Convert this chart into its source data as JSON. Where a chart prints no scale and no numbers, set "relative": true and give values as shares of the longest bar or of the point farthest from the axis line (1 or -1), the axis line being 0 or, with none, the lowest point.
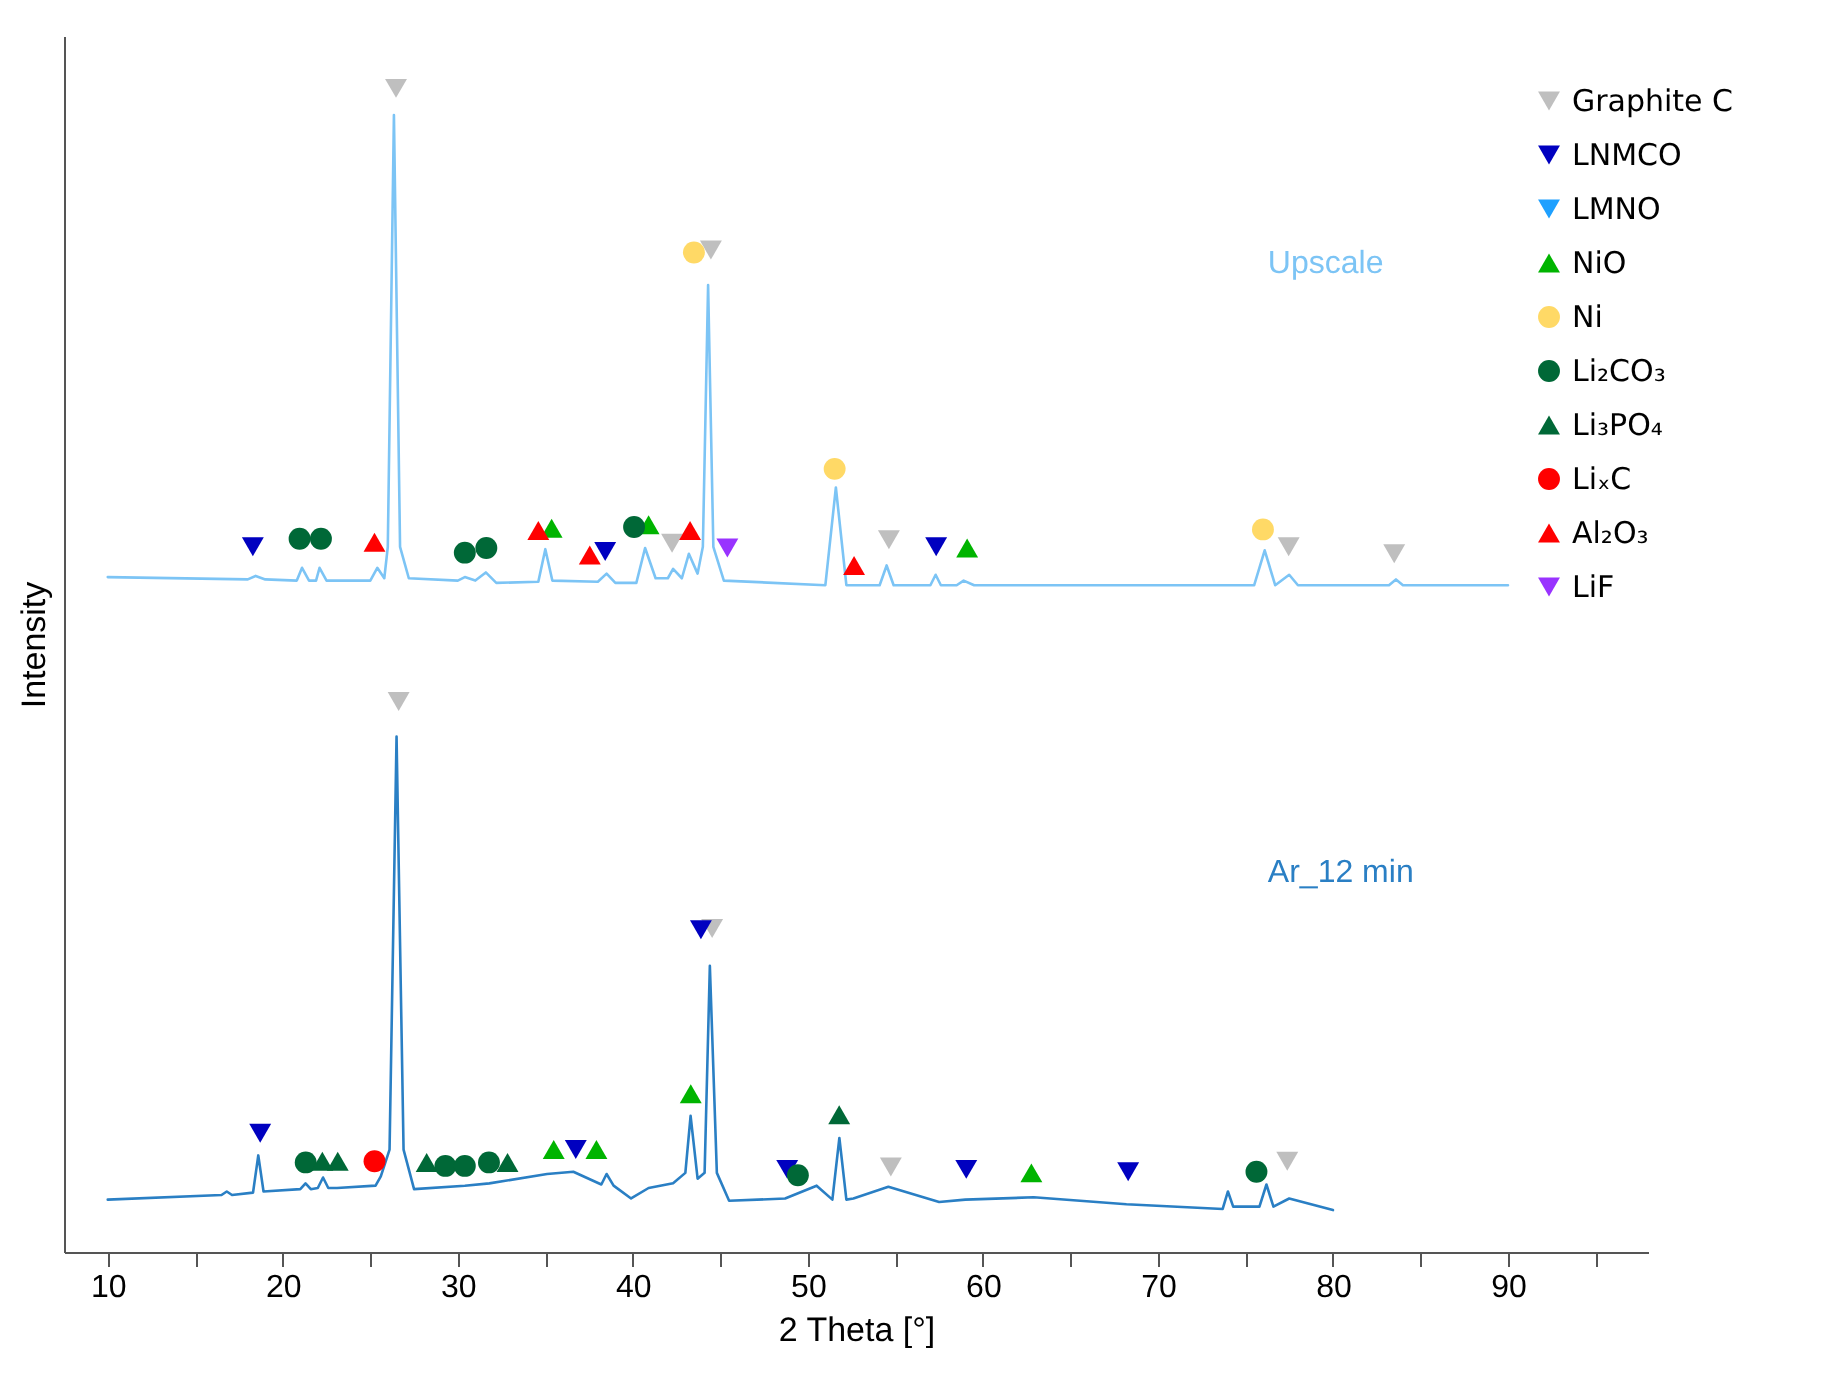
{
  "chart_data": {
    "type": "line",
    "xlabel": "2 Theta [°]",
    "ylabel": "Intensity",
    "relative": true,
    "grid": false,
    "legend": "top right",
    "tick_labels": "x",
    "xlim": [
      7.5,
      98
    ],
    "xticks": [
      10,
      {
        "value": 15,
        "label": null
      },
      20,
      {
        "value": 25,
        "label": null
      },
      30,
      {
        "value": 35,
        "label": null
      },
      40,
      {
        "value": 45,
        "label": null
      },
      50,
      {
        "value": 55,
        "label": null
      },
      60,
      {
        "value": 65,
        "label": null
      },
      70,
      {
        "value": 75,
        "label": null
      },
      80,
      {
        "value": 85,
        "label": null
      },
      90,
      {
        "value": 95,
        "label": null
      }
    ],
    "series": [
      {
        "name": "Upscale",
        "color": "#7cc4f5",
        "x": [
          10,
          18.0,
          18.45,
          19,
          20.8,
          21.1,
          21.5,
          21.9,
          22.1,
          22.5,
          25.0,
          25.4,
          25.8,
          26.0,
          26.35,
          26.7,
          27.2,
          30.0,
          30.4,
          31.0,
          31.6,
          32.2,
          34.6,
          35.0,
          35.4,
          38.0,
          38.5,
          39.0,
          40.2,
          40.7,
          41.3,
          42.0,
          42.3,
          42.8,
          43.2,
          43.7,
          44.0,
          44.3,
          44.6,
          45.2,
          51.0,
          51.6,
          52.2,
          54.1,
          54.5,
          54.9,
          57.0,
          57.3,
          57.6,
          58.5,
          58.9,
          59.5,
          75.5,
          76.1,
          76.7,
          77.5,
          78.0,
          83.2,
          83.6,
          84.0,
          90
        ],
        "values": [
          0.58,
          0.578,
          0.581,
          0.578,
          0.577,
          0.588,
          0.577,
          0.577,
          0.588,
          0.577,
          0.577,
          0.588,
          0.579,
          0.606,
          0.977,
          0.606,
          0.579,
          0.577,
          0.58,
          0.577,
          0.584,
          0.575,
          0.576,
          0.604,
          0.577,
          0.576,
          0.583,
          0.575,
          0.575,
          0.605,
          0.579,
          0.579,
          0.587,
          0.579,
          0.6,
          0.583,
          0.606,
          0.831,
          0.606,
          0.577,
          0.573,
          0.657,
          0.573,
          0.573,
          0.59,
          0.573,
          0.573,
          0.582,
          0.573,
          0.573,
          0.577,
          0.573,
          0.573,
          0.603,
          0.573,
          0.582,
          0.573,
          0.573,
          0.578,
          0.573,
          0.573
        ]
      },
      {
        "name": "Ar_12 min",
        "color": "#2a7fc4",
        "x": [
          10,
          16.5,
          16.8,
          17.1,
          18.3,
          18.6,
          18.9,
          21.0,
          21.3,
          21.6,
          22.0,
          22.3,
          22.6,
          23.1,
          25.3,
          25.6,
          26.1,
          26.5,
          26.9,
          27.5,
          30.4,
          31.8,
          35.1,
          36.6,
          38.2,
          38.5,
          38.9,
          39.9,
          40.9,
          42.3,
          43.0,
          43.3,
          43.7,
          44.1,
          44.4,
          44.8,
          45.5,
          48.7,
          50.5,
          51.4,
          51.8,
          52.2,
          52.6,
          54.6,
          57.5,
          59.0,
          62.9,
          68.2,
          73.7,
          74.0,
          74.3,
          75.8,
          76.2,
          76.6,
          77.5,
          80
        ],
        "values": [
          0.045,
          0.049,
          0.052,
          0.049,
          0.051,
          0.083,
          0.052,
          0.054,
          0.059,
          0.054,
          0.055,
          0.064,
          0.055,
          0.055,
          0.057,
          0.065,
          0.088,
          0.443,
          0.088,
          0.054,
          0.057,
          0.059,
          0.067,
          0.069,
          0.058,
          0.067,
          0.057,
          0.046,
          0.055,
          0.059,
          0.068,
          0.117,
          0.063,
          0.068,
          0.246,
          0.068,
          0.044,
          0.046,
          0.057,
          0.045,
          0.098,
          0.045,
          0.046,
          0.056,
          0.043,
          0.045,
          0.047,
          0.041,
          0.037,
          0.052,
          0.039,
          0.039,
          0.058,
          0.039,
          0.046,
          0.036
        ]
      },
      {
        "name": "Graphite C",
        "type": "scatter",
        "color": "#bfbfbf",
        "marker": "triangle-down",
        "x": [
          26.47,
          44.46,
          42.24,
          54.63,
          77.47,
          83.5,
          26.62,
          44.53,
          54.74,
          77.39
        ],
        "values": [
          1.0,
          0.861,
          0.609,
          0.612,
          0.606,
          0.6,
          0.473,
          0.278,
          0.073,
          0.078
        ]
      },
      {
        "name": "LNMCO",
        "type": "scatter",
        "color": "#0000c0",
        "marker": "triangle-down",
        "x": [
          18.29,
          38.42,
          57.33,
          18.71,
          36.74,
          43.89,
          48.82,
          59.05,
          68.3
        ],
        "values": [
          0.606,
          0.602,
          0.606,
          0.102,
          0.088,
          0.277,
          0.071,
          0.071,
          0.069
        ]
      },
      {
        "name": "LMNO",
        "type": "scatter",
        "color": "#1ea0ff",
        "marker": "triangle-down"
      },
      {
        "name": "NiO",
        "type": "scatter",
        "color": "#00b400",
        "marker": "triangle",
        "x": [
          35.36,
          40.9,
          59.1,
          35.48,
          37.92,
          43.31,
          62.77
        ],
        "values": [
          0.622,
          0.625,
          0.605,
          0.088,
          0.088,
          0.136,
          0.068
        ]
      },
      {
        "name": "Ni",
        "type": "scatter",
        "color": "#ffd966",
        "marker": "circle",
        "x": [
          43.49,
          51.53,
          76.0
        ],
        "values": [
          0.859,
          0.673,
          0.621
        ]
      },
      {
        "name": "Li₂CO₃",
        "type": "scatter",
        "color": "#006837",
        "marker": "circle",
        "x": [
          20.96,
          22.18,
          30.4,
          31.63,
          40.07,
          21.31,
          29.29,
          30.4,
          31.78,
          49.43,
          75.63
        ],
        "values": [
          0.613,
          0.613,
          0.601,
          0.605,
          0.623,
          0.077,
          0.074,
          0.074,
          0.077,
          0.066,
          0.069
        ]
      },
      {
        "name": "Li₃PO₄",
        "type": "scatter",
        "color": "#006837",
        "marker": "triangle",
        "x": [
          22.26,
          23.14,
          28.22,
          32.84,
          51.79
        ],
        "values": [
          0.078,
          0.078,
          0.077,
          0.077,
          0.118
        ]
      },
      {
        "name": "LiₓC",
        "type": "scatter",
        "color": "#ff0000",
        "marker": "circle",
        "x": [
          25.24
        ],
        "values": [
          0.078
        ]
      },
      {
        "name": "Al₂O₃",
        "type": "scatter",
        "color": "#ff0000",
        "marker": "triangle",
        "x": [
          25.24,
          34.6,
          37.54,
          43.27,
          52.64
        ],
        "values": [
          0.61,
          0.62,
          0.599,
          0.62,
          0.59
        ]
      },
      {
        "name": "LiF",
        "type": "scatter",
        "color": "#9933ff",
        "marker": "triangle-down",
        "x": [
          45.4
        ],
        "values": [
          0.605
        ]
      }
    ]
  }
}
